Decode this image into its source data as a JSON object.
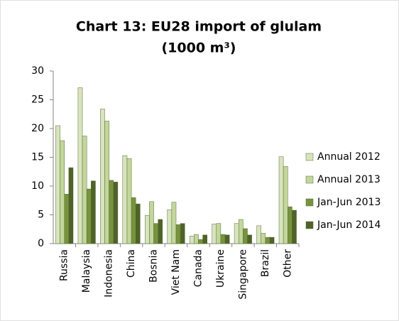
{
  "chart_data": {
    "type": "bar",
    "title": "Chart 13: EU28 import of glulam",
    "subtitle": "(1000 m³)",
    "categories": [
      "Russia",
      "Malaysia",
      "Indonesia",
      "China",
      "Bosnia",
      "Viet Nam",
      "Canada",
      "Ukraine",
      "Singapore",
      "Brazil",
      "Other"
    ],
    "series": [
      {
        "name": "Annual 2012",
        "color": "#d7e4bd",
        "values": [
          20.5,
          27.1,
          23.4,
          15.3,
          4.9,
          5.9,
          1.3,
          3.4,
          3.5,
          3.1,
          15.1
        ]
      },
      {
        "name": "Annual 2013",
        "color": "#c3d69b",
        "values": [
          17.9,
          18.7,
          21.3,
          14.8,
          7.3,
          7.2,
          1.6,
          3.5,
          4.2,
          1.8,
          13.4
        ]
      },
      {
        "name": "Jan-Jun 2013",
        "color": "#77933c",
        "values": [
          8.6,
          9.5,
          11.0,
          8.0,
          3.5,
          3.3,
          0.7,
          1.6,
          2.6,
          1.1,
          6.4
        ]
      },
      {
        "name": "Jan-Jun 2014",
        "color": "#4f6228",
        "values": [
          13.2,
          10.9,
          10.7,
          6.9,
          4.2,
          3.5,
          1.5,
          1.5,
          1.5,
          1.1,
          5.8
        ]
      }
    ],
    "ylim": [
      0,
      30
    ],
    "yticks": [
      0,
      5,
      10,
      15,
      20,
      25,
      30
    ],
    "grid": false,
    "legend": "right"
  }
}
